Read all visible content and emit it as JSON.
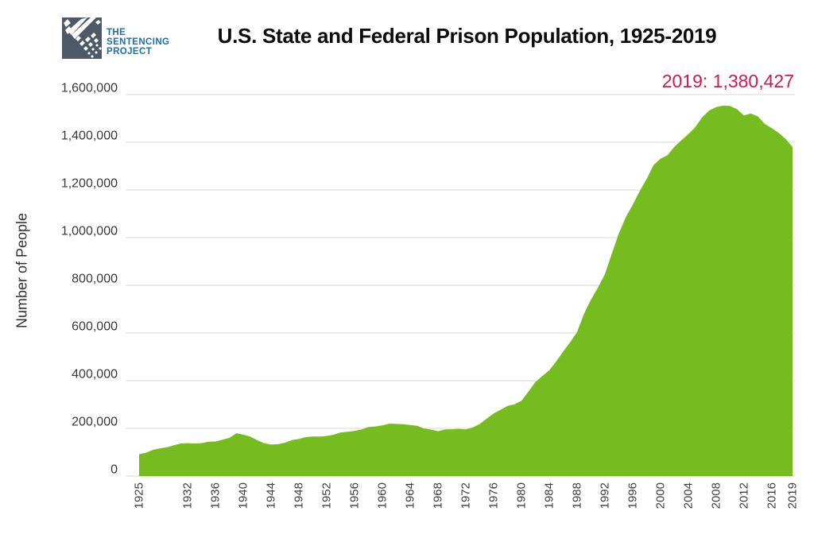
{
  "title": "U.S. State and Federal Prison Population, 1925-2019",
  "logo": {
    "org_name": "The Sentencing Project",
    "lines": [
      "THE",
      "SENTENCING",
      "PROJECT"
    ]
  },
  "annotation": {
    "label": "2019: 1,380,427"
  },
  "y_axis": {
    "title": "Number of People"
  },
  "colors": {
    "area": "#76bc20",
    "annotation": "#d0194e",
    "grid": "#d9d9d9",
    "axis_text": "#404040",
    "logo_square": "#4d5966",
    "logo_text": "#1c70a8",
    "title_text": "#0c0c0c"
  },
  "chart_data": {
    "type": "area",
    "title": "U.S. State and Federal Prison Population, 1925-2019",
    "xlabel": "",
    "ylabel": "Number of People",
    "ylim": [
      0,
      1600000
    ],
    "grid": true,
    "legend": "none",
    "series_name": "U.S. state and federal prison population",
    "annotation": "2019: 1,380,427",
    "yticks": [
      {
        "value": 0,
        "label": "0"
      },
      {
        "value": 200000,
        "label": "200,000"
      },
      {
        "value": 400000,
        "label": "400,000"
      },
      {
        "value": 600000,
        "label": "600,000"
      },
      {
        "value": 800000,
        "label": "800,000"
      },
      {
        "value": 1000000,
        "label": "1,000,000"
      },
      {
        "value": 1200000,
        "label": "1,200,000"
      },
      {
        "value": 1400000,
        "label": "1,400,000"
      },
      {
        "value": 1600000,
        "label": "1,600,000"
      }
    ],
    "xticks": [
      {
        "value": 1925,
        "label": "1925"
      },
      {
        "value": 1932,
        "label": "1932"
      },
      {
        "value": 1936,
        "label": "1936"
      },
      {
        "value": 1940,
        "label": "1940"
      },
      {
        "value": 1944,
        "label": "1944"
      },
      {
        "value": 1948,
        "label": "1948"
      },
      {
        "value": 1952,
        "label": "1952"
      },
      {
        "value": 1956,
        "label": "1956"
      },
      {
        "value": 1960,
        "label": "1960"
      },
      {
        "value": 1964,
        "label": "1964"
      },
      {
        "value": 1968,
        "label": "1968"
      },
      {
        "value": 1972,
        "label": "1972"
      },
      {
        "value": 1976,
        "label": "1976"
      },
      {
        "value": 1980,
        "label": "1980"
      },
      {
        "value": 1984,
        "label": "1984"
      },
      {
        "value": 1988,
        "label": "1988"
      },
      {
        "value": 1992,
        "label": "1992"
      },
      {
        "value": 1996,
        "label": "1996"
      },
      {
        "value": 2000,
        "label": "2000"
      },
      {
        "value": 2004,
        "label": "2004"
      },
      {
        "value": 2008,
        "label": "2008"
      },
      {
        "value": 2012,
        "label": "2012"
      },
      {
        "value": 2016,
        "label": "2016"
      },
      {
        "value": 2019,
        "label": "2019"
      }
    ],
    "points": [
      [
        1925,
        91669
      ],
      [
        1926,
        97991
      ],
      [
        1927,
        109983
      ],
      [
        1928,
        116390
      ],
      [
        1929,
        120496
      ],
      [
        1930,
        129453
      ],
      [
        1931,
        137082
      ],
      [
        1932,
        137997
      ],
      [
        1933,
        136810
      ],
      [
        1934,
        138316
      ],
      [
        1935,
        144180
      ],
      [
        1936,
        145038
      ],
      [
        1937,
        152741
      ],
      [
        1938,
        160285
      ],
      [
        1939,
        179818
      ],
      [
        1940,
        173706
      ],
      [
        1941,
        165439
      ],
      [
        1942,
        150384
      ],
      [
        1943,
        137220
      ],
      [
        1944,
        132456
      ],
      [
        1945,
        133649
      ],
      [
        1946,
        140079
      ],
      [
        1947,
        151304
      ],
      [
        1948,
        155977
      ],
      [
        1949,
        163749
      ],
      [
        1950,
        166123
      ],
      [
        1951,
        165680
      ],
      [
        1952,
        168233
      ],
      [
        1953,
        173579
      ],
      [
        1954,
        182901
      ],
      [
        1955,
        185780
      ],
      [
        1956,
        189565
      ],
      [
        1957,
        195414
      ],
      [
        1958,
        205643
      ],
      [
        1959,
        208105
      ],
      [
        1960,
        212953
      ],
      [
        1961,
        220149
      ],
      [
        1962,
        218830
      ],
      [
        1963,
        217283
      ],
      [
        1964,
        214336
      ],
      [
        1965,
        210895
      ],
      [
        1966,
        199654
      ],
      [
        1967,
        194896
      ],
      [
        1968,
        187914
      ],
      [
        1969,
        196007
      ],
      [
        1970,
        196429
      ],
      [
        1971,
        198061
      ],
      [
        1972,
        196092
      ],
      [
        1973,
        204211
      ],
      [
        1974,
        218466
      ],
      [
        1975,
        240593
      ],
      [
        1976,
        262833
      ],
      [
        1977,
        278141
      ],
      [
        1978,
        294396
      ],
      [
        1979,
        301470
      ],
      [
        1980,
        315974
      ],
      [
        1981,
        353673
      ],
      [
        1982,
        394374
      ],
      [
        1983,
        419820
      ],
      [
        1984,
        443398
      ],
      [
        1985,
        480568
      ],
      [
        1986,
        522084
      ],
      [
        1987,
        560812
      ],
      [
        1988,
        603732
      ],
      [
        1989,
        680907
      ],
      [
        1990,
        739980
      ],
      [
        1991,
        789610
      ],
      [
        1992,
        846277
      ],
      [
        1993,
        932074
      ],
      [
        1994,
        1016691
      ],
      [
        1995,
        1085022
      ],
      [
        1996,
        1137722
      ],
      [
        1997,
        1194581
      ],
      [
        1998,
        1245402
      ],
      [
        1999,
        1304074
      ],
      [
        2000,
        1331278
      ],
      [
        2001,
        1345217
      ],
      [
        2002,
        1380516
      ],
      [
        2003,
        1408361
      ],
      [
        2004,
        1433728
      ],
      [
        2005,
        1462866
      ],
      [
        2006,
        1504660
      ],
      [
        2007,
        1532851
      ],
      [
        2008,
        1547742
      ],
      [
        2009,
        1553574
      ],
      [
        2010,
        1552669
      ],
      [
        2011,
        1538847
      ],
      [
        2012,
        1512430
      ],
      [
        2013,
        1520403
      ],
      [
        2014,
        1508636
      ],
      [
        2015,
        1476847
      ],
      [
        2016,
        1459533
      ],
      [
        2017,
        1439808
      ],
      [
        2018,
        1414162
      ],
      [
        2019,
        1380427
      ]
    ]
  }
}
